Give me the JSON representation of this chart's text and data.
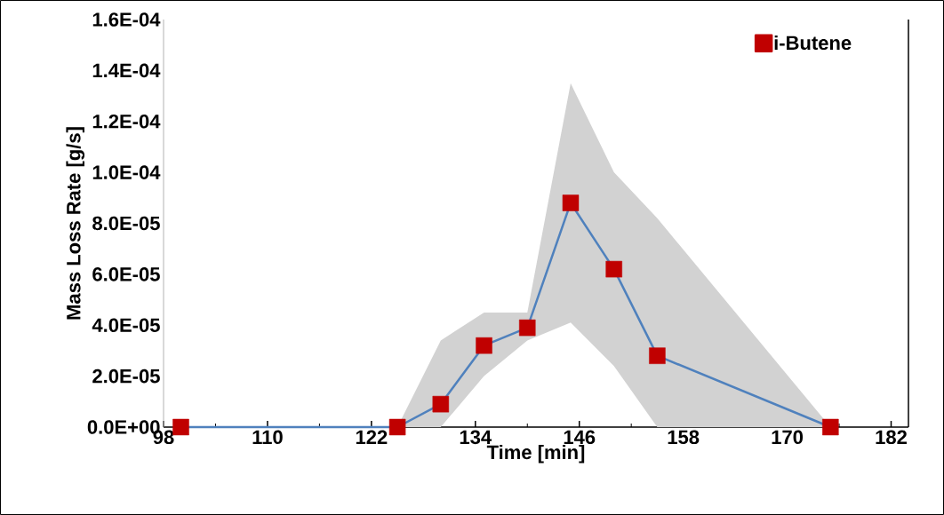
{
  "chart_data": {
    "type": "line",
    "xlabel": "Time [min]",
    "ylabel": "Mass Loss Rate [g/s]",
    "xlim": [
      98,
      184
    ],
    "xticks": [
      98,
      110,
      122,
      134,
      146,
      158,
      170,
      182
    ],
    "ylim": [
      0,
      0.00016
    ],
    "yticks": [
      {
        "value": 0,
        "label": "0.0E+00"
      },
      {
        "value": 2e-05,
        "label": "2.0E-05"
      },
      {
        "value": 4e-05,
        "label": "4.0E-05"
      },
      {
        "value": 6e-05,
        "label": "6.0E-05"
      },
      {
        "value": 8e-05,
        "label": "8.0E-05"
      },
      {
        "value": 0.0001,
        "label": "1.0E-04"
      },
      {
        "value": 0.00012,
        "label": "1.2E-04"
      },
      {
        "value": 0.00014,
        "label": "1.4E-04"
      },
      {
        "value": 0.00016,
        "label": "1.6E-04"
      }
    ],
    "x": [
      100,
      125,
      130,
      135,
      140,
      145,
      150,
      155,
      175
    ],
    "series": [
      {
        "name": "i-Butene",
        "color": "#4f81bd",
        "colors": [
          "#c00000",
          "#c00000",
          "#c00000",
          "#c00000",
          "#c00000",
          "#c00000",
          "#c00000",
          "#c00000",
          "#c00000"
        ],
        "values": [
          0,
          0,
          9e-06,
          3.2e-05,
          3.9e-05,
          8.8e-05,
          6.2e-05,
          2.8e-05,
          0
        ],
        "lower": [
          0,
          0,
          0,
          2e-05,
          3.4e-05,
          4.1e-05,
          2.4e-05,
          0,
          0
        ],
        "upper": [
          0,
          0,
          3.4e-05,
          4.5e-05,
          4.5e-05,
          0.000135,
          0.0001,
          8.2e-05,
          0
        ]
      }
    ],
    "marker": "square",
    "line_style": "solid",
    "grid": false,
    "legend": "top right"
  }
}
